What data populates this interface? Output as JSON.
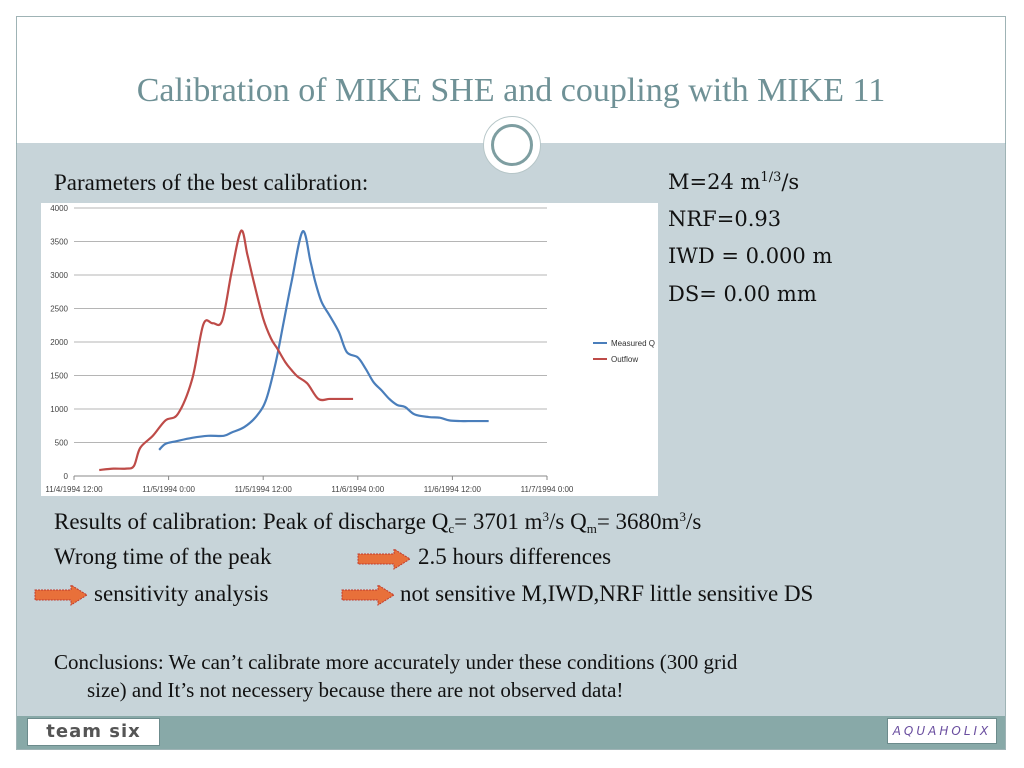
{
  "slide": {
    "title": "Calibration of MIKE SHE and coupling with MIKE 11",
    "params_heading": "Parameters of the best calibration:",
    "params": {
      "m_prefix": "M=24  m",
      "m_sup": "1/3",
      "m_suffix": "/s",
      "nrf": "NRF=0.93",
      "iwd": "IWD = 0.000 m",
      "ds": "DS= 0.00 mm"
    },
    "results": {
      "prefix": "Results of calibration: Peak of discharge  Q",
      "qc_sub": "c",
      "qc_text": "= 3701 m",
      "qc_sup": "3",
      "qc_unit": "/s   Q",
      "qm_sub": "m",
      "qm_text": "= 3680m",
      "qm_sup": "3",
      "qm_unit": "/s"
    },
    "wrong_time": "Wrong time of the peak",
    "hours_diff": "2.5 hours differences",
    "sensitivity": "sensitivity analysis",
    "not_sensitive": "not sensitive M,IWD,NRF  little sensitive DS",
    "conclusion_line1": "Conclusions: We can’t calibrate more accurately under these conditions (300 grid",
    "conclusion_line2": "size)  and It’s not necessery because there are not observed data!",
    "arrow_color": "#e8703a",
    "logo_left": "team six",
    "logo_right": "AQUAHOLIX"
  },
  "chart_data": {
    "type": "line",
    "title": "",
    "xlabel": "",
    "ylabel": "",
    "ylim": [
      0,
      4000
    ],
    "yticks": [
      "0",
      "500",
      "1000",
      "1500",
      "2000",
      "2500",
      "3000",
      "3500",
      "4000"
    ],
    "xlim": [
      0,
      3
    ],
    "xticks": [
      "11/4/1994 12:00",
      "11/5/1994 0:00",
      "11/5/1994 12:00",
      "11/6/1994 0:00",
      "11/6/1994 12:00",
      "11/7/1994 0:00"
    ],
    "grid": true,
    "legend": "right",
    "series": [
      {
        "name": "Measured Q",
        "color": "#4a7ebb",
        "x": [
          0.54,
          0.58,
          0.65,
          0.75,
          0.85,
          0.95,
          1.0,
          1.08,
          1.16,
          1.22,
          1.28,
          1.33,
          1.38,
          1.45,
          1.5,
          1.53,
          1.57,
          1.62,
          1.68,
          1.73,
          1.8,
          1.85,
          1.9,
          1.95,
          2.0,
          2.05,
          2.1,
          2.16,
          2.25,
          2.32,
          2.38,
          2.45,
          2.5,
          2.58,
          2.63
        ],
        "y": [
          390,
          480,
          520,
          570,
          600,
          600,
          650,
          730,
          900,
          1150,
          1700,
          2300,
          2900,
          3650,
          3200,
          2900,
          2600,
          2400,
          2150,
          1850,
          1770,
          1600,
          1400,
          1280,
          1150,
          1060,
          1030,
          920,
          880,
          870,
          830,
          820,
          820,
          820,
          820
        ]
      },
      {
        "name": "Outflow",
        "color": "#be4b48",
        "x": [
          0.16,
          0.25,
          0.33,
          0.38,
          0.42,
          0.5,
          0.58,
          0.66,
          0.75,
          0.82,
          0.88,
          0.94,
          1.0,
          1.06,
          1.1,
          1.14,
          1.2,
          1.25,
          1.29,
          1.34,
          1.38,
          1.42,
          1.48,
          1.55,
          1.62,
          1.68,
          1.73,
          1.77
        ],
        "y": [
          90,
          110,
          110,
          150,
          420,
          600,
          830,
          930,
          1450,
          2260,
          2280,
          2320,
          3050,
          3660,
          3300,
          2900,
          2350,
          2050,
          1900,
          1700,
          1580,
          1480,
          1380,
          1150,
          1150,
          1150,
          1150,
          1150
        ]
      }
    ]
  }
}
